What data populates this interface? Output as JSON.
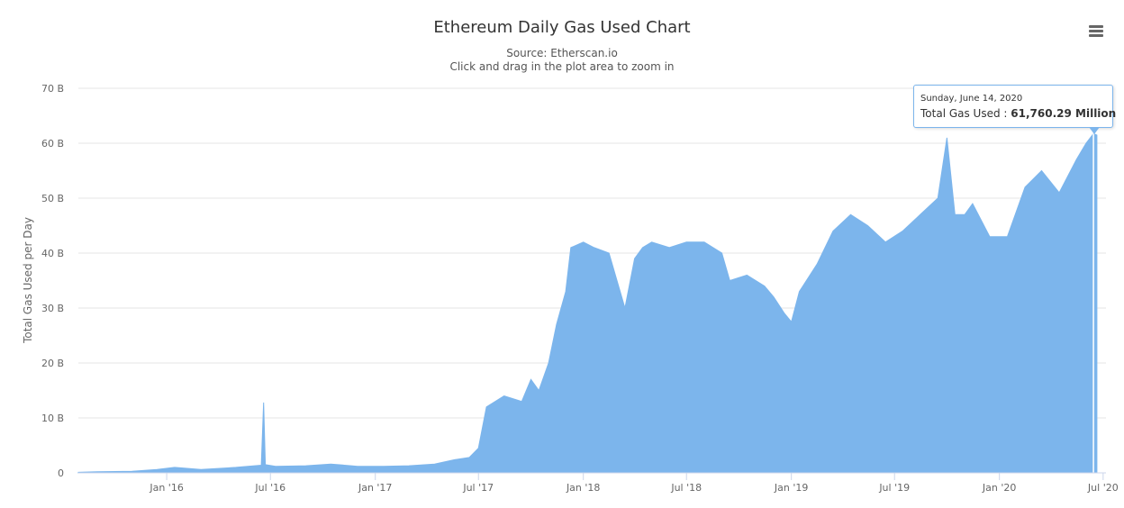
{
  "title": "Ethereum Daily Gas Used Chart",
  "subtitle_source": "Source: Etherscan.io",
  "subtitle_hint": "Click and drag in the plot area to zoom in",
  "menu_icon": "hamburger-menu-icon",
  "tooltip": {
    "date": "Sunday, June 14, 2020",
    "series_label": "Total Gas Used",
    "value": "61,760.29 Million"
  },
  "chart_data": {
    "type": "area",
    "title": "Ethereum Daily Gas Used Chart",
    "subtitle": "Source: Etherscan.io",
    "ylabel": "Total Gas Used per Day",
    "xlabel": "",
    "ylim": [
      0,
      70
    ],
    "y_unit": "B",
    "y_ticks": [
      0,
      10,
      20,
      30,
      40,
      50,
      60,
      70
    ],
    "y_tick_labels": [
      "0",
      "10 B",
      "20 B",
      "30 B",
      "40 B",
      "50 B",
      "60 B",
      "70 B"
    ],
    "x_ticks": [
      "2016-01-01",
      "2016-07-01",
      "2017-01-01",
      "2017-07-01",
      "2018-01-01",
      "2018-07-01",
      "2019-01-01",
      "2019-07-01",
      "2020-01-01",
      "2020-07-01"
    ],
    "x_tick_labels": [
      "Jan '16",
      "Jul '16",
      "Jan '17",
      "Jul '17",
      "Jan '18",
      "Jul '18",
      "Jan '19",
      "Jul '19",
      "Jan '20",
      "Jul '20"
    ],
    "xlim": [
      "2015-07-30",
      "2020-07-06"
    ],
    "color": "#7cb5ec",
    "grid": true,
    "series": [
      {
        "x": [
          "2015-07-30",
          "2015-09-01",
          "2015-11-01",
          "2015-12-15",
          "2016-01-15",
          "2016-03-01",
          "2016-05-01",
          "2016-06-15",
          "2016-06-19",
          "2016-06-22",
          "2016-07-10",
          "2016-09-01",
          "2016-10-15",
          "2016-11-20",
          "2016-12-01",
          "2017-01-15",
          "2017-03-01",
          "2017-04-15",
          "2017-05-20",
          "2017-06-15",
          "2017-07-01",
          "2017-07-15",
          "2017-08-15",
          "2017-09-15",
          "2017-10-01",
          "2017-10-15",
          "2017-11-01",
          "2017-11-15",
          "2017-12-01",
          "2017-12-10",
          "2018-01-01",
          "2018-01-20",
          "2018-02-15",
          "2018-03-15",
          "2018-04-01",
          "2018-04-15",
          "2018-05-01",
          "2018-06-01",
          "2018-07-01",
          "2018-08-01",
          "2018-09-01",
          "2018-09-15",
          "2018-10-15",
          "2018-11-15",
          "2018-12-01",
          "2018-12-20",
          "2019-01-01",
          "2019-01-15",
          "2019-02-15",
          "2019-03-15",
          "2019-04-15",
          "2019-05-15",
          "2019-06-15",
          "2019-07-15",
          "2019-08-15",
          "2019-09-15",
          "2019-10-01",
          "2019-10-15",
          "2019-11-01",
          "2019-11-15",
          "2019-12-15",
          "2020-01-15",
          "2020-02-15",
          "2020-03-15",
          "2020-04-15",
          "2020-05-15",
          "2020-06-01",
          "2020-06-14",
          "2020-06-20"
        ],
        "y": [
          0.1,
          0.2,
          0.3,
          0.6,
          1.0,
          0.6,
          1.0,
          1.4,
          12.8,
          1.5,
          1.2,
          1.3,
          1.6,
          1.3,
          1.2,
          1.2,
          1.3,
          1.6,
          2.4,
          2.8,
          4.5,
          12.0,
          14.0,
          13.0,
          17.0,
          15.0,
          20.0,
          27.0,
          33.0,
          41.0,
          42.0,
          41.0,
          40.0,
          30.0,
          39.0,
          41.0,
          42.0,
          41.0,
          42.0,
          42.0,
          40.0,
          35.0,
          36.0,
          34.0,
          32.0,
          29.0,
          27.5,
          33.0,
          38.0,
          44.0,
          47.0,
          45.0,
          42.0,
          44.0,
          47.0,
          50.0,
          61.0,
          47.0,
          47.0,
          49.0,
          43.0,
          43.0,
          52.0,
          55.0,
          51.0,
          57.0,
          60.0,
          61.76,
          61.5
        ]
      }
    ]
  }
}
